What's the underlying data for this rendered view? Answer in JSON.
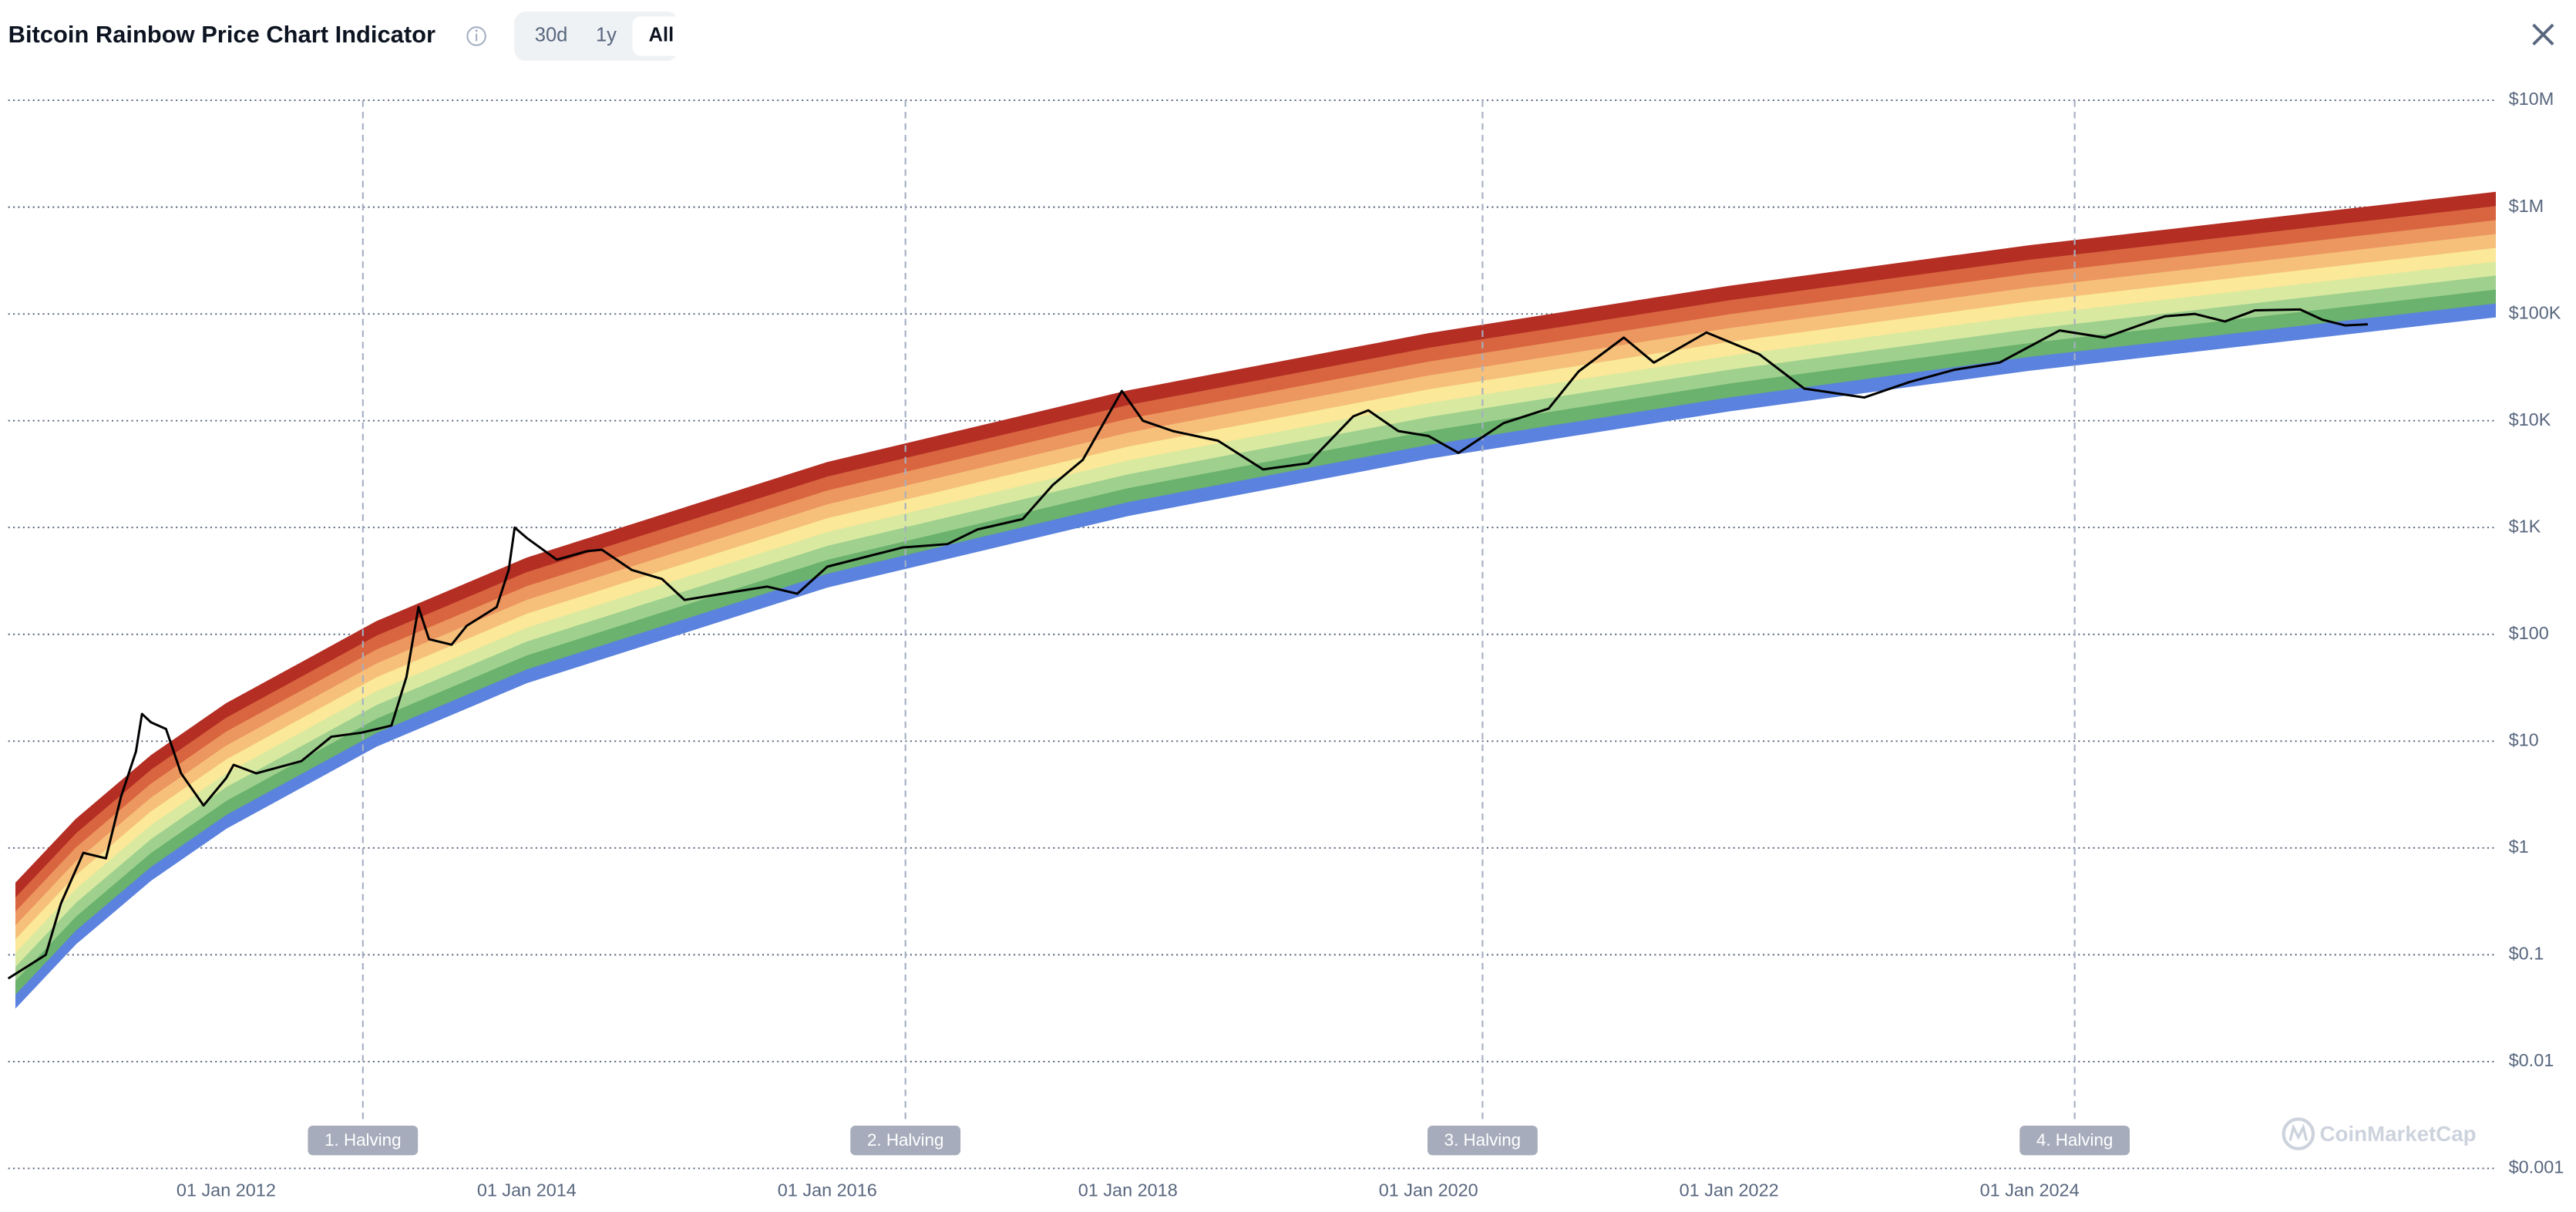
{
  "header": {
    "title": "Bitcoin Rainbow Price Chart Indicator",
    "tabs": [
      "30d",
      "1y",
      "All"
    ],
    "active_tab": "All"
  },
  "chart_data": {
    "type": "line",
    "y_scale": "log",
    "grid": true,
    "xlim": [
      2010.55,
      2027.1
    ],
    "ylim": [
      0.001,
      10000000
    ],
    "xticks": [
      {
        "value": 2012,
        "label": "01 Jan 2012"
      },
      {
        "value": 2014,
        "label": "01 Jan 2014"
      },
      {
        "value": 2016,
        "label": "01 Jan 2016"
      },
      {
        "value": 2018,
        "label": "01 Jan 2018"
      },
      {
        "value": 2020,
        "label": "01 Jan 2020"
      },
      {
        "value": 2022,
        "label": "01 Jan 2022"
      },
      {
        "value": 2024,
        "label": "01 Jan 2024"
      }
    ],
    "yticks": [
      {
        "value": 0.001,
        "label": "$0.001"
      },
      {
        "value": 0.01,
        "label": "$0.01"
      },
      {
        "value": 0.1,
        "label": "$0.1"
      },
      {
        "value": 1,
        "label": "$1"
      },
      {
        "value": 10,
        "label": "$10"
      },
      {
        "value": 100,
        "label": "$100"
      },
      {
        "value": 1000,
        "label": "$1K"
      },
      {
        "value": 10000,
        "label": "$10K"
      },
      {
        "value": 100000,
        "label": "$100K"
      },
      {
        "value": 1000000,
        "label": "$1M"
      },
      {
        "value": 10000000,
        "label": "$10M"
      }
    ],
    "series": [
      {
        "color": "#000000",
        "x": [
          2010.55,
          2010.8,
          2010.9,
          2011.05,
          2011.2,
          2011.3,
          2011.4,
          2011.44,
          2011.5,
          2011.6,
          2011.7,
          2011.85,
          2012.0,
          2012.05,
          2012.2,
          2012.5,
          2012.7,
          2012.9,
          2013.1,
          2013.2,
          2013.28,
          2013.35,
          2013.5,
          2013.6,
          2013.8,
          2013.88,
          2013.92,
          2014.0,
          2014.2,
          2014.4,
          2014.5,
          2014.7,
          2014.9,
          2015.05,
          2015.3,
          2015.6,
          2015.8,
          2016.0,
          2016.5,
          2016.8,
          2017.0,
          2017.3,
          2017.5,
          2017.7,
          2017.96,
          2018.1,
          2018.3,
          2018.6,
          2018.9,
          2019.2,
          2019.5,
          2019.6,
          2019.8,
          2020.0,
          2020.2,
          2020.5,
          2020.8,
          2021.0,
          2021.3,
          2021.5,
          2021.85,
          2022.2,
          2022.5,
          2022.9,
          2023.2,
          2023.5,
          2023.8,
          2024.2,
          2024.5,
          2024.9,
          2025.1,
          2025.3,
          2025.5,
          2025.8,
          2025.95,
          2026.1,
          2026.25
        ],
        "values": [
          0.06,
          0.1,
          0.3,
          0.9,
          0.8,
          3,
          8,
          18,
          15,
          13,
          5,
          2.5,
          4.5,
          6,
          5,
          6.5,
          11,
          12,
          14,
          40,
          180,
          90,
          80,
          120,
          180,
          400,
          1000,
          800,
          500,
          600,
          620,
          400,
          330,
          210,
          240,
          280,
          240,
          430,
          650,
          700,
          960,
          1200,
          2500,
          4300,
          19000,
          10000,
          8000,
          6500,
          3500,
          4000,
          11000,
          12500,
          8000,
          7200,
          5000,
          9500,
          13000,
          29000,
          60000,
          35000,
          67000,
          42000,
          20000,
          16500,
          23000,
          30000,
          35000,
          70000,
          60000,
          95000,
          100000,
          85000,
          108000,
          110000,
          88000,
          78000,
          80000
        ]
      }
    ],
    "rainbow": {
      "x": [
        2010.6,
        2011,
        2011.5,
        2012,
        2013,
        2014,
        2016,
        2018,
        2020,
        2022,
        2024,
        2027.1
      ],
      "colors": [
        "#5b82de",
        "#6ab26d",
        "#9fd08e",
        "#d9e9a0",
        "#fbe898",
        "#f6c07a",
        "#ec9660",
        "#d8653f",
        "#b42e24"
      ],
      "edges": [
        [
          0.0319,
          0.126,
          0.497,
          1.52,
          8.93,
          35.1,
          276,
          1290,
          4430,
          12300,
          29600,
          93500
        ],
        [
          0.043,
          0.17,
          0.67,
          2.05,
          12.0,
          47.3,
          372,
          1740,
          5970,
          16600,
          39900,
          126000
        ],
        [
          0.0581,
          0.229,
          0.905,
          2.77,
          16.3,
          63.9,
          502,
          2350,
          8060,
          22400,
          53800,
          170000
        ],
        [
          0.0783,
          0.309,
          1.22,
          3.73,
          21.9,
          86.2,
          678,
          3170,
          10900,
          30200,
          72600,
          230000
        ],
        [
          0.106,
          0.417,
          1.65,
          5.03,
          29.6,
          116,
          914,
          4270,
          14700,
          40700,
          97900,
          310000
        ],
        [
          0.142,
          0.563,
          2.22,
          6.79,
          39.9,
          157,
          1230,
          5770,
          19800,
          55000,
          132000,
          418000
        ],
        [
          0.192,
          0.759,
          2.99,
          9.16,
          53.8,
          212,
          1660,
          7780,
          26700,
          74100,
          178000,
          564000
        ],
        [
          0.259,
          1.02,
          4.04,
          12.4,
          72.6,
          285,
          2240,
          10500,
          36000,
          100000,
          240000,
          760000
        ],
        [
          0.35,
          1.38,
          5.45,
          16.7,
          97.9,
          385,
          3020,
          14100,
          48500,
          135000,
          324000,
          1030000
        ],
        [
          0.472,
          1.86,
          7.35,
          22.5,
          132,
          519,
          4080,
          19100,
          65500,
          182000,
          437000,
          1380000
        ]
      ]
    },
    "halvings": [
      {
        "x": 2012.91,
        "label": "1. Halving"
      },
      {
        "x": 2016.52,
        "label": "2. Halving"
      },
      {
        "x": 2020.36,
        "label": "3. Halving"
      },
      {
        "x": 2024.3,
        "label": "4. Halving"
      }
    ]
  },
  "watermark": "CoinMarketCap"
}
